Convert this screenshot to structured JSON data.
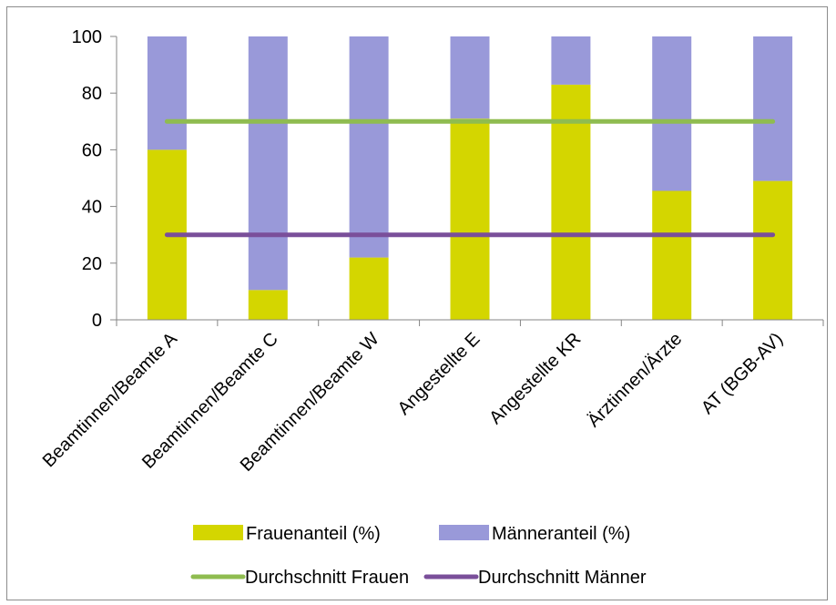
{
  "chart_data": {
    "type": "bar",
    "stacked": true,
    "categories": [
      "Beamtinnen/Beamte A",
      "Beamtinnen/Beamte C",
      "Beamtinnen/Beamte W",
      "Angestellte E",
      "Angestellte KR",
      "Ärztinnen/Ärzte",
      "AT (BGB-AV)"
    ],
    "series": [
      {
        "name": "Frauenanteil (%)",
        "kind": "bar",
        "color": "#d4d600",
        "values": [
          60,
          10.5,
          22,
          71,
          83,
          45.5,
          49
        ]
      },
      {
        "name": "Männeranteil (%)",
        "kind": "bar",
        "color": "#9999d9",
        "values": [
          40,
          89.5,
          78,
          29,
          17,
          54.5,
          51
        ]
      },
      {
        "name": "Durchschnitt Frauen",
        "kind": "line",
        "color": "#8fbc50",
        "values": [
          70,
          70,
          70,
          70,
          70,
          70,
          70
        ]
      },
      {
        "name": "Durchschnitt Männer",
        "kind": "line",
        "color": "#7a4f9a",
        "values": [
          30,
          30,
          30,
          30,
          30,
          30,
          30
        ]
      }
    ],
    "ylim": [
      0,
      100
    ],
    "yticks": [
      0,
      20,
      40,
      60,
      80,
      100
    ],
    "title": "",
    "xlabel": "",
    "ylabel": "",
    "grid": false,
    "legend_position": "bottom"
  }
}
